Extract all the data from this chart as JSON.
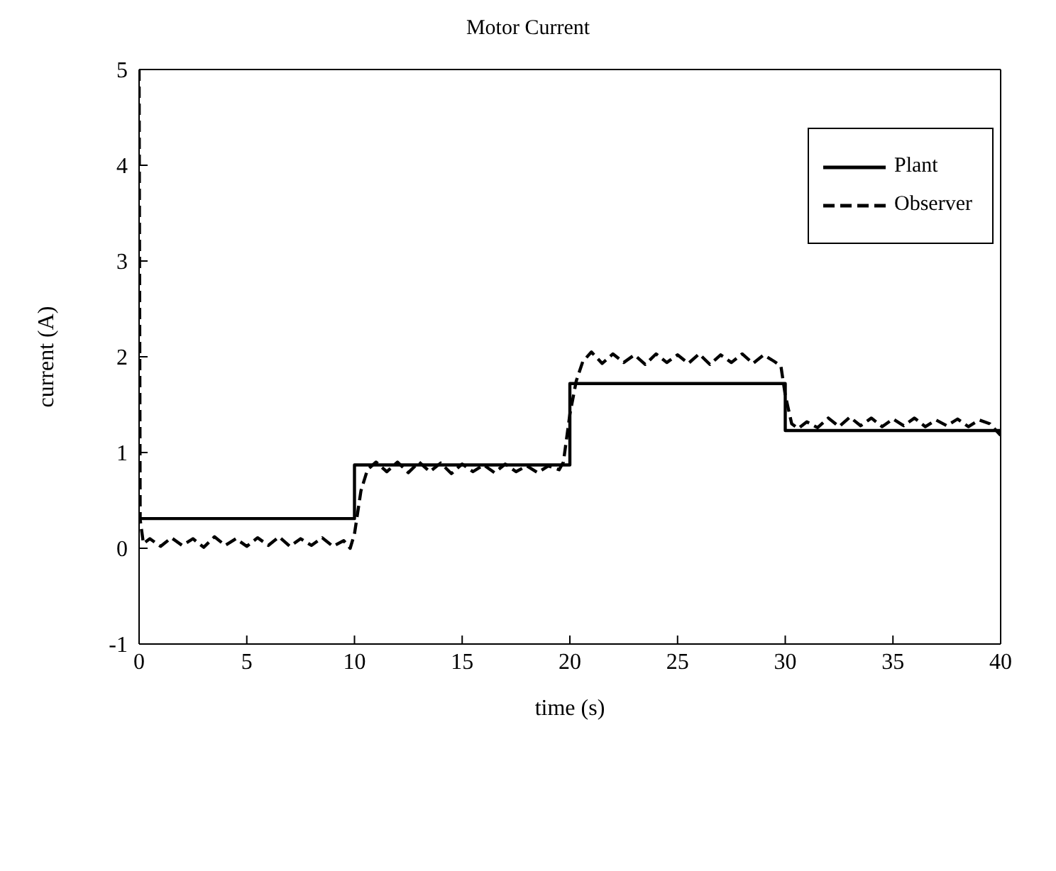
{
  "chart_data": {
    "type": "line",
    "title": "Motor Current",
    "xlabel": "time (s)",
    "ylabel": "current (A)",
    "xlim": [
      0,
      40
    ],
    "xticks": [
      0,
      5,
      10,
      15,
      20,
      25,
      30,
      35,
      40
    ],
    "ylim": [
      -1,
      5
    ],
    "yticks": [
      -1,
      0,
      1,
      2,
      3,
      4,
      5
    ],
    "legend": "top right",
    "marker": "none",
    "series": [
      {
        "name": "Plant",
        "color": "#000000",
        "line_style": "solid",
        "x": [
          0,
          10,
          10,
          20,
          20,
          30,
          30,
          40
        ],
        "values": [
          0.31,
          0.31,
          0.87,
          0.87,
          1.72,
          1.72,
          1.23,
          1.23
        ]
      },
      {
        "name": "Observer",
        "color": "#000000",
        "line_style": "dashed",
        "x": [
          0,
          0.05,
          0.2,
          0.5,
          1,
          1.5,
          2,
          2.5,
          3,
          3.5,
          4,
          4.5,
          5,
          5.5,
          6,
          6.5,
          7,
          7.5,
          8,
          8.5,
          9,
          9.5,
          9.8,
          10,
          10.3,
          10.6,
          11,
          11.5,
          12,
          12.5,
          13,
          13.5,
          14,
          14.5,
          15,
          15.5,
          16,
          16.5,
          17,
          17.5,
          18,
          18.5,
          19,
          19.5,
          19.7,
          20,
          20.3,
          20.6,
          21,
          21.5,
          22,
          22.5,
          23,
          23.5,
          24,
          24.5,
          25,
          25.5,
          26,
          26.5,
          27,
          27.5,
          28,
          28.5,
          29,
          29.5,
          29.8,
          30,
          30.3,
          30.6,
          31,
          31.5,
          32,
          32.5,
          33,
          33.5,
          34,
          34.5,
          35,
          35.5,
          36,
          36.5,
          37,
          37.5,
          38,
          38.5,
          39,
          39.5,
          40
        ],
        "values": [
          5,
          0.3,
          0.05,
          0.1,
          0.02,
          0.11,
          0.03,
          0.1,
          0.01,
          0.12,
          0.03,
          0.1,
          0.02,
          0.11,
          0.03,
          0.12,
          0.02,
          0.1,
          0.03,
          0.11,
          0.02,
          0.08,
          0,
          0.15,
          0.6,
          0.82,
          0.9,
          0.8,
          0.9,
          0.79,
          0.9,
          0.8,
          0.89,
          0.78,
          0.88,
          0.8,
          0.87,
          0.79,
          0.88,
          0.8,
          0.86,
          0.79,
          0.86,
          0.82,
          0.9,
          1.4,
          1.75,
          1.95,
          2.05,
          1.93,
          2.03,
          1.94,
          2.02,
          1.92,
          2.03,
          1.94,
          2.02,
          1.93,
          2.03,
          1.92,
          2.02,
          1.94,
          2.03,
          1.93,
          2.02,
          1.95,
          1.9,
          1.6,
          1.3,
          1.25,
          1.32,
          1.26,
          1.36,
          1.27,
          1.37,
          1.28,
          1.36,
          1.27,
          1.35,
          1.28,
          1.36,
          1.27,
          1.34,
          1.28,
          1.35,
          1.27,
          1.34,
          1.3,
          1.18
        ]
      }
    ]
  }
}
